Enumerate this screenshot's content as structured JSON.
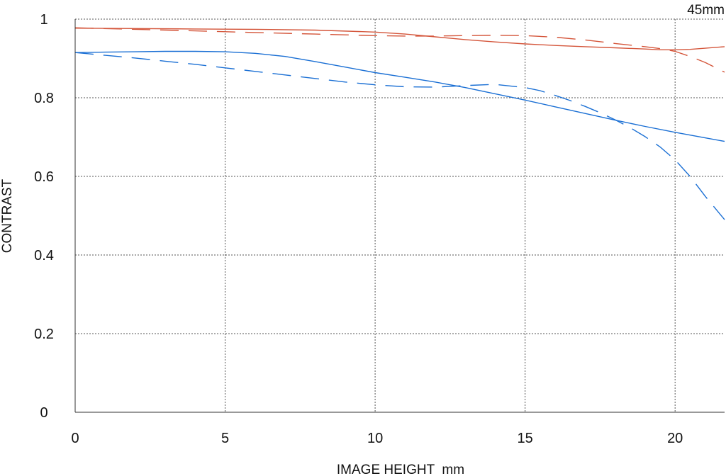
{
  "chart_data": {
    "type": "line",
    "title": "",
    "corner_label": "45mm",
    "xlabel": "IMAGE HEIGHT  mm",
    "ylabel": "CONTRAST",
    "xlim": [
      0,
      21.65
    ],
    "ylim": [
      0,
      1
    ],
    "x_ticks": [
      0,
      5,
      10,
      15,
      20
    ],
    "y_ticks": [
      0,
      0.2,
      0.4,
      0.6,
      0.8,
      1
    ],
    "y_tick_labels": [
      "0",
      "0.2",
      "0.4",
      "0.6",
      "0.8",
      "1"
    ],
    "grid": true,
    "legend": "none",
    "series": [
      {
        "color": "#d4553a",
        "dash": "solid",
        "x": [
          0,
          2,
          4,
          6,
          8,
          10,
          11,
          12,
          13,
          14,
          15,
          16,
          17,
          18,
          19,
          19.5,
          20,
          20.5,
          21,
          21.65
        ],
        "y": [
          0.977,
          0.976,
          0.975,
          0.974,
          0.972,
          0.967,
          0.962,
          0.955,
          0.948,
          0.942,
          0.937,
          0.933,
          0.93,
          0.927,
          0.924,
          0.922,
          0.922,
          0.923,
          0.926,
          0.93
        ]
      },
      {
        "color": "#d4553a",
        "dash": "dashed",
        "x": [
          0,
          2,
          4,
          6,
          8,
          10,
          11,
          12,
          13,
          14,
          15,
          16,
          17,
          18,
          19,
          19.5,
          20,
          20.5,
          21,
          21.65
        ],
        "y": [
          0.978,
          0.974,
          0.97,
          0.966,
          0.962,
          0.958,
          0.957,
          0.957,
          0.958,
          0.959,
          0.958,
          0.954,
          0.947,
          0.938,
          0.93,
          0.925,
          0.918,
          0.905,
          0.89,
          0.865
        ]
      },
      {
        "color": "#1a6fd4",
        "dash": "solid",
        "x": [
          0,
          1,
          2,
          3,
          4,
          5,
          6,
          7,
          8,
          9,
          10,
          11,
          12,
          13,
          14,
          15,
          16,
          17,
          18,
          19,
          20,
          21,
          21.65
        ],
        "y": [
          0.915,
          0.916,
          0.917,
          0.918,
          0.918,
          0.917,
          0.913,
          0.905,
          0.892,
          0.878,
          0.864,
          0.852,
          0.84,
          0.826,
          0.81,
          0.794,
          0.777,
          0.76,
          0.743,
          0.727,
          0.712,
          0.698,
          0.689
        ]
      },
      {
        "color": "#1a6fd4",
        "dash": "dashed",
        "x": [
          0,
          1,
          2,
          3,
          4,
          5,
          6,
          7,
          8,
          9,
          10,
          11,
          12,
          13,
          14,
          15,
          15.5,
          16,
          16.5,
          17,
          17.5,
          18,
          18.5,
          19,
          19.5,
          20,
          20.5,
          21,
          21.65
        ],
        "y": [
          0.915,
          0.908,
          0.901,
          0.893,
          0.885,
          0.876,
          0.867,
          0.858,
          0.849,
          0.84,
          0.833,
          0.828,
          0.827,
          0.831,
          0.834,
          0.826,
          0.818,
          0.806,
          0.793,
          0.778,
          0.762,
          0.744,
          0.724,
          0.701,
          0.675,
          0.642,
          0.6,
          0.55,
          0.49
        ]
      }
    ]
  }
}
